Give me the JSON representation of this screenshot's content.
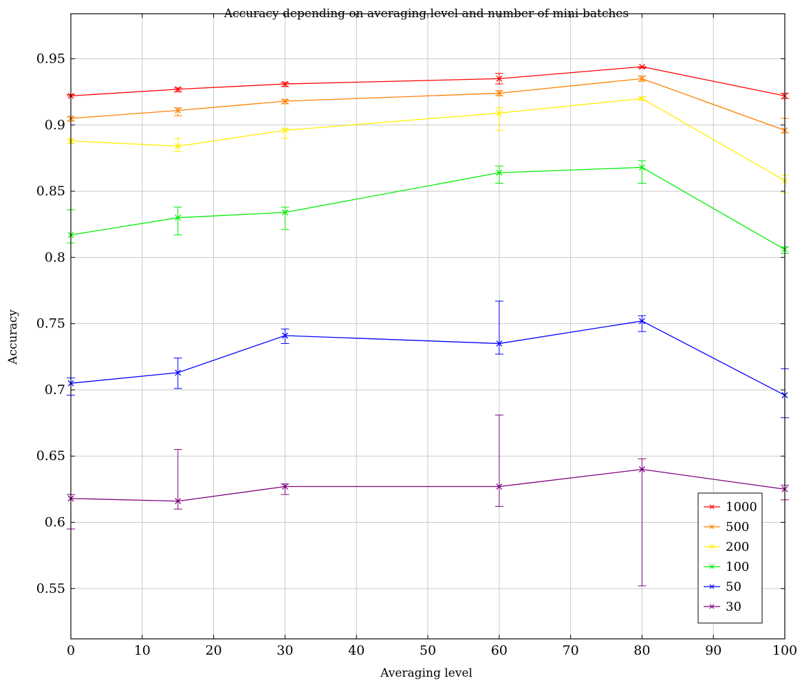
{
  "chart_data": {
    "type": "line",
    "title": "Accuracy depending on averaging level and number of mini-batches",
    "xlabel": "Averaging level",
    "ylabel": "Accuracy",
    "xlim": [
      0,
      100
    ],
    "ylim": [
      0.512,
      0.984
    ],
    "grid": true,
    "legend_position": "bottom-right",
    "x": [
      0,
      15,
      30,
      60,
      80,
      100
    ],
    "xticks": [
      0,
      10,
      20,
      30,
      40,
      50,
      60,
      70,
      80,
      90,
      100
    ],
    "yticks": [
      0.55,
      0.6,
      0.65,
      0.7,
      0.75,
      0.8,
      0.85,
      0.9,
      0.95
    ],
    "xtick_labels": [
      "0",
      "10",
      "20",
      "30",
      "40",
      "50",
      "60",
      "70",
      "80",
      "90",
      "100"
    ],
    "ytick_labels": [
      "0.55",
      "0.6",
      "0.65",
      "0.7",
      "0.75",
      "0.8",
      "0.85",
      "0.9",
      "0.95"
    ],
    "series": [
      {
        "name": "1000",
        "color": "#ff0000",
        "values": [
          0.922,
          0.927,
          0.931,
          0.935,
          0.944,
          0.922
        ],
        "err_low": [
          0.922,
          0.925,
          0.929,
          0.931,
          0.943,
          0.92
        ],
        "err_high": [
          0.923,
          0.928,
          0.932,
          0.939,
          0.944,
          0.924
        ]
      },
      {
        "name": "500",
        "color": "#ff7f00",
        "values": [
          0.905,
          0.911,
          0.918,
          0.924,
          0.935,
          0.896
        ],
        "err_low": [
          0.903,
          0.907,
          0.916,
          0.922,
          0.933,
          0.894
        ],
        "err_high": [
          0.906,
          0.913,
          0.919,
          0.926,
          0.937,
          0.905
        ]
      },
      {
        "name": "200",
        "color": "#ffee00",
        "values": [
          0.888,
          0.884,
          0.896,
          0.909,
          0.92,
          0.858
        ],
        "err_low": [
          0.886,
          0.88,
          0.89,
          0.896,
          0.919,
          0.849
        ],
        "err_high": [
          0.889,
          0.89,
          0.897,
          0.913,
          0.921,
          0.862
        ]
      },
      {
        "name": "100",
        "color": "#00ee00",
        "values": [
          0.817,
          0.83,
          0.834,
          0.864,
          0.868,
          0.806
        ],
        "err_low": [
          0.811,
          0.817,
          0.821,
          0.856,
          0.856,
          0.803
        ],
        "err_high": [
          0.836,
          0.838,
          0.838,
          0.869,
          0.873,
          0.808
        ]
      },
      {
        "name": "50",
        "color": "#0000ff",
        "values": [
          0.705,
          0.713,
          0.741,
          0.735,
          0.752,
          0.696
        ],
        "err_low": [
          0.696,
          0.701,
          0.735,
          0.727,
          0.744,
          0.679
        ],
        "err_high": [
          0.709,
          0.724,
          0.746,
          0.767,
          0.756,
          0.716
        ]
      },
      {
        "name": "30",
        "color": "#800080",
        "values": [
          0.618,
          0.616,
          0.627,
          0.627,
          0.64,
          0.625
        ],
        "err_low": [
          0.595,
          0.61,
          0.621,
          0.612,
          0.552,
          0.617
        ],
        "err_high": [
          0.621,
          0.655,
          0.629,
          0.681,
          0.648,
          0.628
        ]
      }
    ]
  }
}
